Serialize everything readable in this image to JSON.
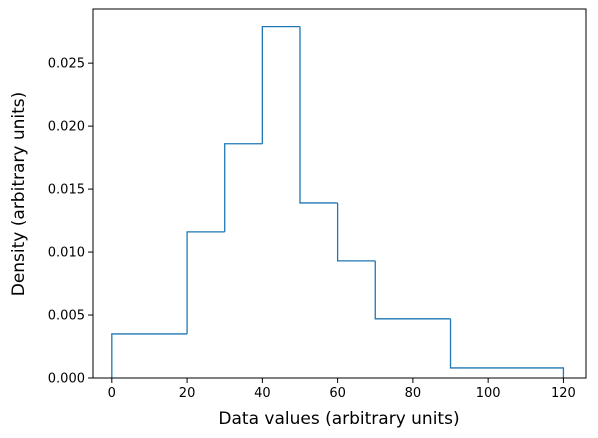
{
  "chart_data": {
    "type": "histogram",
    "title": "",
    "xlabel": "Data values (arbitrary units)",
    "ylabel": "Density (arbitrary units)",
    "xlim": [
      -5,
      126
    ],
    "ylim": [
      0,
      0.0293
    ],
    "bin_edges": [
      0,
      20,
      30,
      40,
      50,
      60,
      70,
      90,
      120
    ],
    "densities": [
      0.0035,
      0.0116,
      0.0186,
      0.0279,
      0.0139,
      0.0093,
      0.0047,
      0.0008
    ],
    "line_color": "#1f77b4",
    "grid": false,
    "xticks": [
      0,
      20,
      40,
      60,
      80,
      100,
      120
    ],
    "xtick_labels": [
      "0",
      "20",
      "40",
      "60",
      "80",
      "100",
      "120"
    ],
    "yticks": [
      0,
      0.005,
      0.01,
      0.015,
      0.02,
      0.025
    ],
    "ytick_labels": [
      "0.000",
      "0.005",
      "0.010",
      "0.015",
      "0.020",
      "0.025"
    ]
  }
}
